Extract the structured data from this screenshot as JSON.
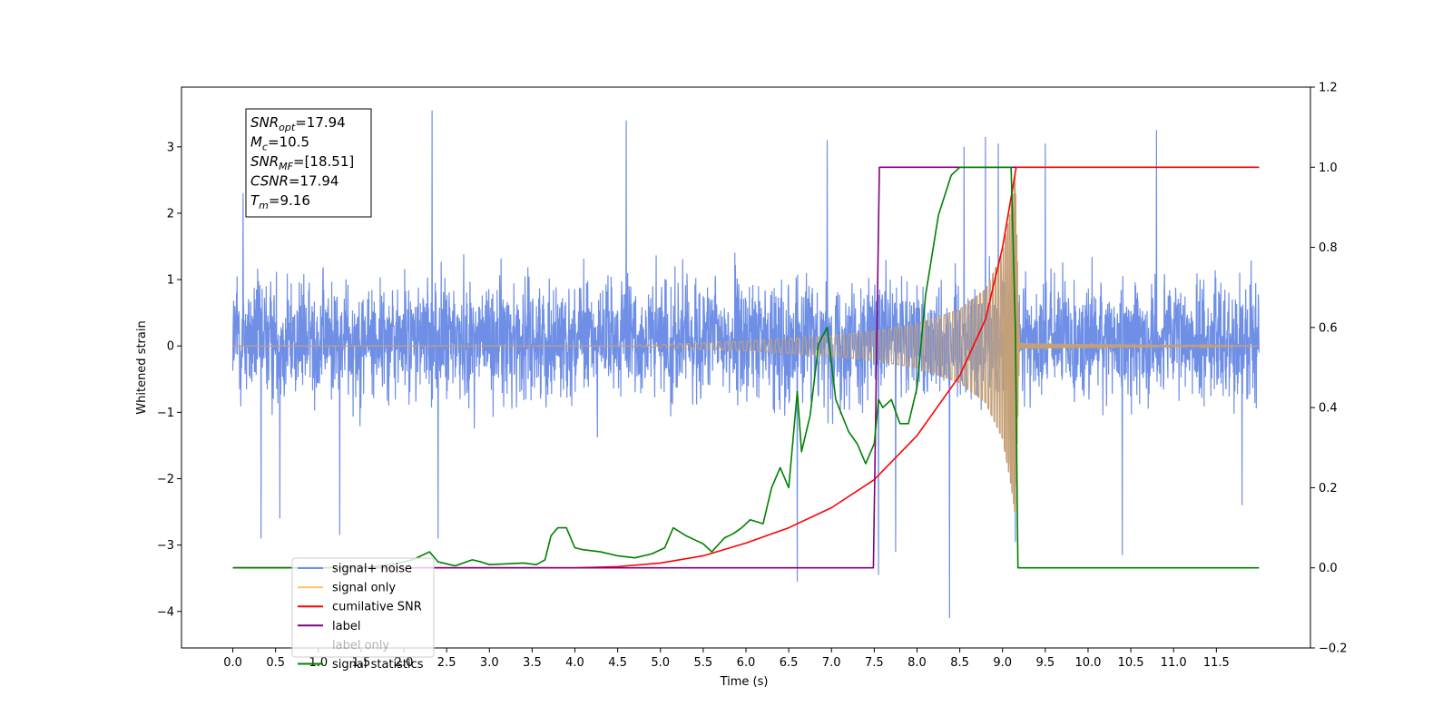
{
  "chart_data": {
    "type": "line",
    "xlabel": "Time (s)",
    "ylabel": "Whitened strain",
    "xlim": [
      -0.6,
      12.6
    ],
    "xticks": [
      0.0,
      0.5,
      1.0,
      1.5,
      2.0,
      2.5,
      3.0,
      3.5,
      4.0,
      4.5,
      5.0,
      5.5,
      6.0,
      6.5,
      7.0,
      7.5,
      8.0,
      8.5,
      9.0,
      9.5,
      10.0,
      10.5,
      11.0,
      11.5
    ],
    "ylim_left": [
      -4.55,
      3.9
    ],
    "yticks_left": [
      -4,
      -3,
      -2,
      -1,
      0,
      1,
      2,
      3
    ],
    "ylim_right": [
      -0.2,
      1.2
    ],
    "yticks_right": [
      -0.2,
      0.0,
      0.2,
      0.4,
      0.6,
      0.8,
      1.0,
      1.2
    ],
    "annotation": {
      "lines": [
        {
          "base": "SNR",
          "sub": "opt",
          "rest": "=17.94"
        },
        {
          "base": "M",
          "sub": "c",
          "rest": "=10.5"
        },
        {
          "base": "SNR",
          "sub": "MF",
          "rest": "=[18.51]"
        },
        {
          "base": "CSNR",
          "sub": "",
          "rest": "=17.94"
        },
        {
          "base": "T",
          "sub": "m",
          "rest": "=9.16"
        }
      ]
    },
    "legend": {
      "placement": "lower-left",
      "entries": [
        "signal+ noise",
        "signal only",
        "cumilative SNR",
        "label",
        "label only",
        "signal statistics"
      ]
    },
    "series": [
      {
        "name": "signal+ noise",
        "axis": "left",
        "color": "#6f8fe6",
        "kind": "noise",
        "x_range": [
          0.0,
          12.0
        ],
        "band": [
          -1.6,
          1.9
        ],
        "spikes": [
          [
            0.05,
            1.05
          ],
          [
            0.08,
            -0.65
          ],
          [
            0.12,
            2.3
          ],
          [
            0.33,
            -2.9
          ],
          [
            0.55,
            -2.6
          ],
          [
            1.25,
            -2.85
          ],
          [
            2.33,
            3.55
          ],
          [
            2.4,
            -2.9
          ],
          [
            4.6,
            3.4
          ],
          [
            6.6,
            -3.55
          ],
          [
            6.95,
            3.1
          ],
          [
            7.55,
            -3.45
          ],
          [
            7.75,
            -3.1
          ],
          [
            8.38,
            -4.1
          ],
          [
            8.55,
            3.0
          ],
          [
            8.8,
            3.15
          ],
          [
            8.95,
            3.05
          ],
          [
            9.15,
            -2.95
          ],
          [
            9.5,
            3.05
          ],
          [
            10.4,
            -3.15
          ],
          [
            10.8,
            3.25
          ],
          [
            11.8,
            -2.4
          ]
        ]
      },
      {
        "name": "signal only",
        "axis": "left",
        "color": "#c4a077",
        "kind": "chirp",
        "x_range": [
          0.0,
          12.0
        ],
        "peak_time": 9.16,
        "envelope": [
          [
            4.5,
            0.0
          ],
          [
            5.0,
            0.02
          ],
          [
            6.0,
            0.07
          ],
          [
            7.0,
            0.15
          ],
          [
            7.5,
            0.22
          ],
          [
            8.0,
            0.33
          ],
          [
            8.5,
            0.55
          ],
          [
            8.8,
            0.85
          ],
          [
            9.0,
            1.4
          ],
          [
            9.1,
            2.1
          ],
          [
            9.15,
            2.6
          ],
          [
            9.2,
            0.04
          ],
          [
            12.0,
            0.0
          ]
        ]
      },
      {
        "name": "cumilative SNR",
        "axis": "right",
        "color": "#ff0000",
        "points": [
          [
            0.0,
            0.0
          ],
          [
            4.0,
            0.0
          ],
          [
            4.5,
            0.003
          ],
          [
            5.0,
            0.012
          ],
          [
            5.5,
            0.03
          ],
          [
            6.0,
            0.062
          ],
          [
            6.5,
            0.1
          ],
          [
            7.0,
            0.15
          ],
          [
            7.5,
            0.22
          ],
          [
            8.0,
            0.33
          ],
          [
            8.5,
            0.48
          ],
          [
            8.8,
            0.62
          ],
          [
            9.0,
            0.8
          ],
          [
            9.16,
            1.0
          ],
          [
            12.0,
            1.0
          ]
        ]
      },
      {
        "name": "label",
        "axis": "right",
        "color": "#800080",
        "points": [
          [
            0.0,
            0.0
          ],
          [
            7.49,
            0.0
          ],
          [
            7.56,
            1.0
          ],
          [
            9.16,
            1.0
          ]
        ]
      },
      {
        "name": "signal statistics",
        "axis": "right",
        "color": "#008000",
        "points": [
          [
            0.0,
            0.0
          ],
          [
            1.0,
            0.0
          ],
          [
            1.5,
            0.0
          ],
          [
            1.9,
            0.01
          ],
          [
            2.1,
            0.02
          ],
          [
            2.2,
            0.03
          ],
          [
            2.3,
            0.04
          ],
          [
            2.4,
            0.015
          ],
          [
            2.5,
            0.01
          ],
          [
            2.6,
            0.005
          ],
          [
            2.8,
            0.02
          ],
          [
            2.9,
            0.015
          ],
          [
            3.0,
            0.008
          ],
          [
            3.2,
            0.01
          ],
          [
            3.4,
            0.012
          ],
          [
            3.55,
            0.008
          ],
          [
            3.65,
            0.02
          ],
          [
            3.72,
            0.08
          ],
          [
            3.8,
            0.1
          ],
          [
            3.9,
            0.1
          ],
          [
            4.0,
            0.05
          ],
          [
            4.1,
            0.045
          ],
          [
            4.3,
            0.04
          ],
          [
            4.5,
            0.03
          ],
          [
            4.7,
            0.025
          ],
          [
            4.9,
            0.035
          ],
          [
            5.05,
            0.05
          ],
          [
            5.15,
            0.1
          ],
          [
            5.3,
            0.08
          ],
          [
            5.4,
            0.07
          ],
          [
            5.5,
            0.06
          ],
          [
            5.6,
            0.04
          ],
          [
            5.75,
            0.075
          ],
          [
            5.85,
            0.085
          ],
          [
            5.95,
            0.1
          ],
          [
            6.05,
            0.12
          ],
          [
            6.2,
            0.11
          ],
          [
            6.3,
            0.2
          ],
          [
            6.4,
            0.25
          ],
          [
            6.5,
            0.2
          ],
          [
            6.6,
            0.44
          ],
          [
            6.65,
            0.29
          ],
          [
            6.75,
            0.38
          ],
          [
            6.85,
            0.56
          ],
          [
            6.95,
            0.6
          ],
          [
            7.05,
            0.42
          ],
          [
            7.2,
            0.34
          ],
          [
            7.3,
            0.31
          ],
          [
            7.4,
            0.26
          ],
          [
            7.5,
            0.31
          ],
          [
            7.55,
            0.42
          ],
          [
            7.6,
            0.4
          ],
          [
            7.7,
            0.42
          ],
          [
            7.8,
            0.36
          ],
          [
            7.9,
            0.36
          ],
          [
            8.0,
            0.45
          ],
          [
            8.1,
            0.68
          ],
          [
            8.25,
            0.88
          ],
          [
            8.4,
            0.98
          ],
          [
            8.5,
            1.0
          ],
          [
            8.7,
            1.0
          ],
          [
            9.1,
            1.0
          ],
          [
            9.15,
            0.6
          ],
          [
            9.18,
            0.0
          ],
          [
            12.0,
            0.0
          ]
        ]
      }
    ]
  }
}
